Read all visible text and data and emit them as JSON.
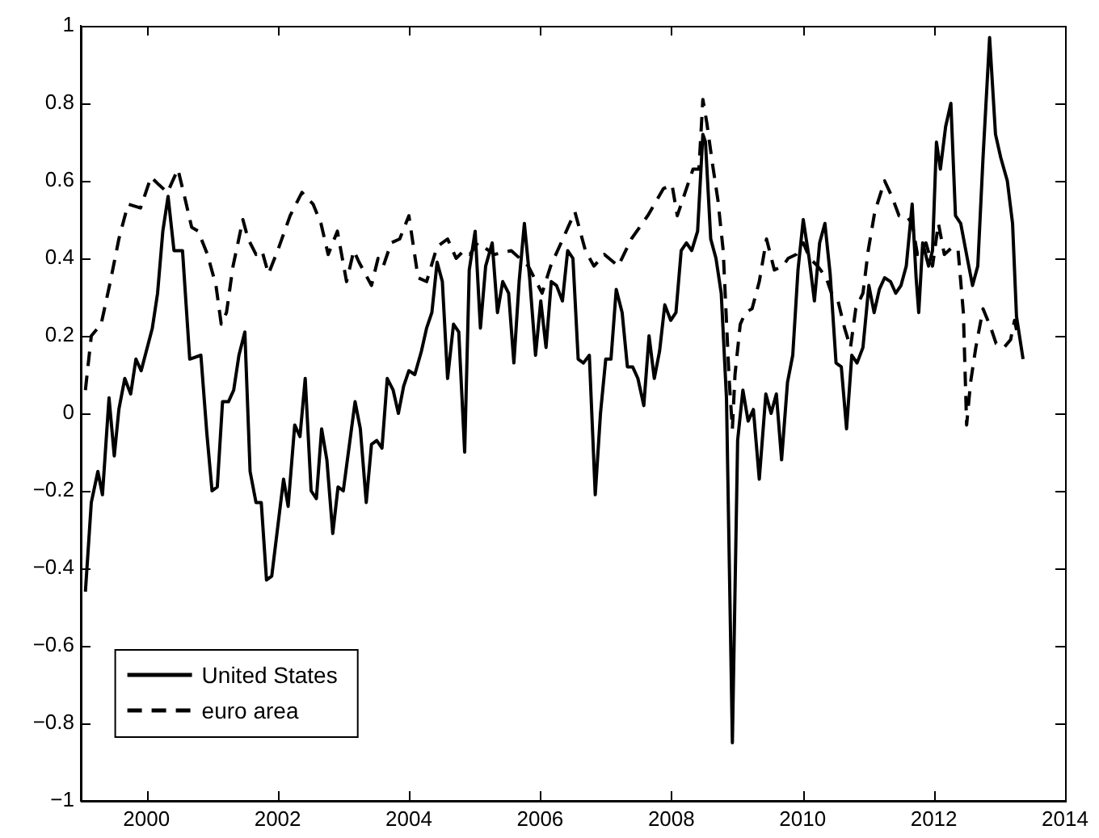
{
  "chart_data": {
    "type": "line",
    "xlim": [
      1999,
      2014
    ],
    "xticks": [
      2000,
      2002,
      2004,
      2006,
      2008,
      2010,
      2012,
      2014
    ],
    "ylim": [
      -1,
      1
    ],
    "yticks": [
      -1,
      -0.8,
      -0.6,
      -0.4,
      -0.2,
      0,
      0.2,
      0.4,
      0.6,
      0.8,
      1
    ],
    "grid": false,
    "legend": "bottom left",
    "marker": "none",
    "series": [
      {
        "name": "United States",
        "color": "#000000",
        "line_style": "solid",
        "x": [
          1999.07,
          1999.16,
          1999.26,
          1999.33,
          1999.43,
          1999.51,
          1999.58,
          1999.67,
          1999.76,
          1999.84,
          1999.92,
          2000.09,
          2000.17,
          2000.25,
          2000.33,
          2000.42,
          2000.55,
          2000.66,
          2000.83,
          2000.92,
          2001.0,
          2001.08,
          2001.16,
          2001.25,
          2001.33,
          2001.41,
          2001.5,
          2001.58,
          2001.67,
          2001.75,
          2001.83,
          2001.91,
          2002.09,
          2002.16,
          2002.26,
          2002.34,
          2002.42,
          2002.51,
          2002.59,
          2002.67,
          2002.75,
          2002.84,
          2002.92,
          2003.0,
          2003.18,
          2003.26,
          2003.35,
          2003.43,
          2003.51,
          2003.59,
          2003.67,
          2003.76,
          2003.84,
          2003.92,
          2004.0,
          2004.09,
          2004.19,
          2004.27,
          2004.35,
          2004.43,
          2004.51,
          2004.59,
          2004.68,
          2004.76,
          2004.85,
          2004.92,
          2005.01,
          2005.09,
          2005.17,
          2005.27,
          2005.35,
          2005.43,
          2005.52,
          2005.6,
          2005.68,
          2005.76,
          2005.84,
          2005.93,
          2006.01,
          2006.09,
          2006.17,
          2006.25,
          2006.34,
          2006.42,
          2006.5,
          2006.58,
          2006.66,
          2006.75,
          2006.84,
          2006.92,
          2007.0,
          2007.08,
          2007.16,
          2007.25,
          2007.33,
          2007.41,
          2007.49,
          2007.58,
          2007.66,
          2007.74,
          2007.82,
          2007.9,
          2007.99,
          2008.07,
          2008.15,
          2008.23,
          2008.31,
          2008.4,
          2008.48,
          2008.52,
          2008.6,
          2008.68,
          2008.76,
          2008.84,
          2008.93,
          2009.01,
          2009.09,
          2009.17,
          2009.25,
          2009.34,
          2009.44,
          2009.52,
          2009.6,
          2009.68,
          2009.77,
          2009.85,
          2009.93,
          2010.01,
          2010.1,
          2010.18,
          2010.26,
          2010.34,
          2010.42,
          2010.51,
          2010.59,
          2010.67,
          2010.75,
          2010.83,
          2010.92,
          2011.01,
          2011.09,
          2011.17,
          2011.25,
          2011.34,
          2011.42,
          2011.5,
          2011.58,
          2011.67,
          2011.73,
          2011.77,
          2011.83,
          2011.92,
          2011.98,
          2012.04,
          2012.1,
          2012.18,
          2012.26,
          2012.33,
          2012.41,
          2012.51,
          2012.59,
          2012.67,
          2012.75,
          2012.85,
          2012.94,
          2013.02,
          2013.12,
          2013.2,
          2013.26,
          2013.36
        ],
        "values": [
          -0.46,
          -0.23,
          -0.15,
          -0.21,
          0.04,
          -0.11,
          0.01,
          0.09,
          0.05,
          0.14,
          0.11,
          0.22,
          0.31,
          0.47,
          0.56,
          0.42,
          0.42,
          0.14,
          0.15,
          -0.05,
          -0.2,
          -0.19,
          0.03,
          0.03,
          0.06,
          0.15,
          0.21,
          -0.15,
          -0.23,
          -0.23,
          -0.43,
          -0.42,
          -0.17,
          -0.24,
          -0.03,
          -0.06,
          0.09,
          -0.2,
          -0.22,
          -0.04,
          -0.12,
          -0.31,
          -0.19,
          -0.2,
          0.03,
          -0.04,
          -0.23,
          -0.08,
          -0.07,
          -0.09,
          0.09,
          0.06,
          0.0,
          0.07,
          0.11,
          0.1,
          0.16,
          0.22,
          0.26,
          0.39,
          0.34,
          0.09,
          0.23,
          0.21,
          -0.1,
          0.37,
          0.47,
          0.22,
          0.38,
          0.44,
          0.26,
          0.34,
          0.31,
          0.13,
          0.34,
          0.49,
          0.35,
          0.15,
          0.29,
          0.17,
          0.34,
          0.33,
          0.29,
          0.42,
          0.4,
          0.14,
          0.13,
          0.15,
          -0.21,
          0.0,
          0.14,
          0.14,
          0.32,
          0.26,
          0.12,
          0.12,
          0.09,
          0.02,
          0.2,
          0.09,
          0.16,
          0.28,
          0.24,
          0.26,
          0.42,
          0.44,
          0.42,
          0.47,
          0.72,
          0.7,
          0.45,
          0.4,
          0.31,
          0.04,
          -0.85,
          -0.07,
          0.06,
          -0.02,
          0.01,
          -0.17,
          0.05,
          0.0,
          0.05,
          -0.12,
          0.08,
          0.15,
          0.37,
          0.5,
          0.4,
          0.29,
          0.44,
          0.49,
          0.36,
          0.13,
          0.12,
          -0.04,
          0.15,
          0.13,
          0.17,
          0.33,
          0.26,
          0.32,
          0.35,
          0.34,
          0.31,
          0.33,
          0.38,
          0.54,
          0.35,
          0.26,
          0.44,
          0.38,
          0.42,
          0.7,
          0.63,
          0.74,
          0.8,
          0.51,
          0.49,
          0.4,
          0.33,
          0.38,
          0.66,
          0.97,
          0.72,
          0.66,
          0.6,
          0.49,
          0.25,
          0.14
        ]
      },
      {
        "name": "euro area",
        "color": "#000000",
        "line_style": "dashed",
        "x": [
          1999.07,
          1999.16,
          1999.31,
          1999.45,
          1999.58,
          1999.72,
          1999.91,
          2000.07,
          2000.19,
          2000.32,
          2000.48,
          2000.58,
          2000.69,
          2000.79,
          2000.93,
          2001.06,
          2001.14,
          2001.22,
          2001.32,
          2001.47,
          2001.55,
          2001.67,
          2001.76,
          2001.86,
          2002.0,
          2002.19,
          2002.37,
          2002.54,
          2002.66,
          2002.77,
          2002.91,
          2003.05,
          2003.16,
          2003.24,
          2003.43,
          2003.53,
          2003.61,
          2003.73,
          2003.86,
          2004.0,
          2004.14,
          2004.27,
          2004.43,
          2004.59,
          2004.72,
          2004.84,
          2004.93,
          2005.05,
          2005.3,
          2005.56,
          2005.82,
          2006.03,
          2006.16,
          2006.32,
          2006.53,
          2006.69,
          2006.82,
          2006.98,
          2007.19,
          2007.39,
          2007.64,
          2007.88,
          2008.01,
          2008.09,
          2008.21,
          2008.33,
          2008.42,
          2008.48,
          2008.54,
          2008.63,
          2008.71,
          2008.79,
          2008.88,
          2008.93,
          2008.97,
          2009.05,
          2009.13,
          2009.23,
          2009.34,
          2009.45,
          2009.57,
          2009.7,
          2009.78,
          2009.9,
          2010.01,
          2010.11,
          2010.23,
          2010.36,
          2010.44,
          2010.54,
          2010.64,
          2010.73,
          2010.81,
          2010.92,
          2011.0,
          2011.1,
          2011.25,
          2011.36,
          2011.47,
          2011.58,
          2011.67,
          2011.75,
          2011.88,
          2011.98,
          2012.07,
          2012.16,
          2012.29,
          2012.37,
          2012.45,
          2012.5,
          2012.56,
          2012.64,
          2012.75,
          2012.87,
          2012.95,
          2013.07,
          2013.17,
          2013.23,
          2013.28
        ],
        "values": [
          0.06,
          0.2,
          0.23,
          0.34,
          0.45,
          0.54,
          0.53,
          0.61,
          0.59,
          0.57,
          0.63,
          0.56,
          0.48,
          0.47,
          0.41,
          0.33,
          0.23,
          0.26,
          0.38,
          0.5,
          0.45,
          0.41,
          0.42,
          0.36,
          0.42,
          0.51,
          0.57,
          0.54,
          0.49,
          0.41,
          0.47,
          0.34,
          0.42,
          0.39,
          0.33,
          0.4,
          0.38,
          0.44,
          0.45,
          0.51,
          0.35,
          0.34,
          0.43,
          0.45,
          0.4,
          0.42,
          0.41,
          0.44,
          0.41,
          0.42,
          0.38,
          0.31,
          0.38,
          0.44,
          0.52,
          0.42,
          0.38,
          0.41,
          0.38,
          0.45,
          0.51,
          0.58,
          0.59,
          0.51,
          0.57,
          0.63,
          0.63,
          0.81,
          0.75,
          0.64,
          0.55,
          0.42,
          0.09,
          -0.04,
          0.1,
          0.23,
          0.26,
          0.27,
          0.34,
          0.45,
          0.37,
          0.38,
          0.4,
          0.41,
          0.44,
          0.4,
          0.38,
          0.35,
          0.31,
          0.29,
          0.22,
          0.17,
          0.27,
          0.31,
          0.42,
          0.52,
          0.6,
          0.56,
          0.51,
          0.51,
          0.49,
          0.41,
          0.44,
          0.38,
          0.49,
          0.41,
          0.43,
          0.42,
          0.26,
          -0.03,
          0.08,
          0.17,
          0.27,
          0.22,
          0.18,
          0.17,
          0.19,
          0.24,
          0.2
        ]
      }
    ]
  }
}
